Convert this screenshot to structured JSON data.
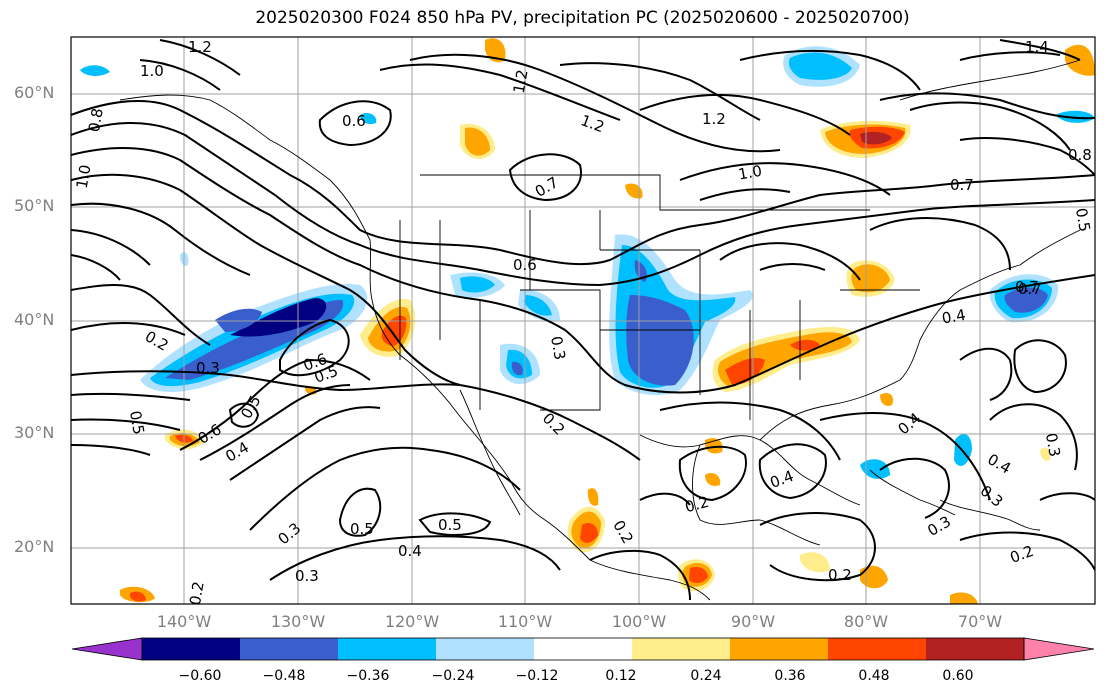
{
  "title": "2025020300 F024 850 hPa PV, precipitation PC (2025020600 - 2025020700)",
  "lat_labels": [
    "60°N",
    "50°N",
    "40°N",
    "30°N",
    "20°N"
  ],
  "lon_labels": [
    "140°W",
    "130°W",
    "120°W",
    "110°W",
    "100°W",
    "90°W",
    "80°W",
    "70°W"
  ],
  "colorbar": {
    "colors": [
      "#9932CC",
      "#000080",
      "#3A5FCD",
      "#00BFFF",
      "#B0E2FF",
      "#FFFFFF",
      "#FFEC8B",
      "#FFA500",
      "#FF4500",
      "#B22222",
      "#FF82AB"
    ],
    "tick_labels": [
      "−0.60",
      "−0.48",
      "−0.36",
      "−0.24",
      "−0.12",
      "0.12",
      "0.24",
      "0.36",
      "0.48",
      "0.60"
    ]
  },
  "contour_labels": [
    {
      "text": "1.2"
    },
    {
      "text": "1.0"
    },
    {
      "text": "0.8"
    },
    {
      "text": "1.0"
    },
    {
      "text": "0.6"
    },
    {
      "text": "1.2"
    },
    {
      "text": "1.2"
    },
    {
      "text": "1.2"
    },
    {
      "text": "1.0"
    },
    {
      "text": "0.7"
    },
    {
      "text": "0.7"
    },
    {
      "text": "0.8"
    },
    {
      "text": "1.4"
    },
    {
      "text": "0.7"
    },
    {
      "text": "0.6"
    },
    {
      "text": "0.2"
    },
    {
      "text": "0.3"
    },
    {
      "text": "0.6"
    },
    {
      "text": "0.5"
    },
    {
      "text": "0.5"
    },
    {
      "text": "0.6"
    },
    {
      "text": "0.4"
    },
    {
      "text": "0.5"
    },
    {
      "text": "0.3"
    },
    {
      "text": "0.2"
    },
    {
      "text": "0.4"
    },
    {
      "text": "0.4"
    },
    {
      "text": "0.2"
    },
    {
      "text": "0.4"
    },
    {
      "text": "0.7"
    },
    {
      "text": "0.4"
    },
    {
      "text": "0.3"
    },
    {
      "text": "0.3"
    },
    {
      "text": "0.2"
    },
    {
      "text": "0.3"
    },
    {
      "text": "0.5"
    },
    {
      "text": "0.5"
    },
    {
      "text": "0.4"
    },
    {
      "text": "0.3"
    },
    {
      "text": "0.3"
    },
    {
      "text": "0.2"
    },
    {
      "text": "0.2"
    },
    {
      "text": "0.2"
    },
    {
      "text": "0.5"
    }
  ]
}
